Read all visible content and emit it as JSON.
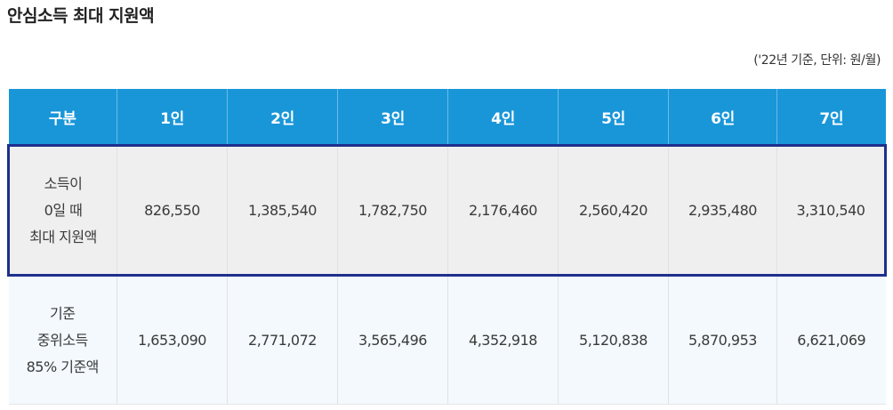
{
  "page": {
    "title": "안심소득 최대 지원액",
    "unit_note": "('22년 기준, 단위: 원/월)"
  },
  "table": {
    "headers": [
      "구분",
      "1인",
      "2인",
      "3인",
      "4인",
      "5인",
      "6인",
      "7인"
    ],
    "rows": [
      {
        "label": "소득이\n0일 때\n최대 지원액",
        "values": [
          "826,550",
          "1,385,540",
          "1,782,750",
          "2,176,460",
          "2,560,420",
          "2,935,480",
          "3,310,540"
        ]
      },
      {
        "label": "기준\n중위소득\n85% 기준액",
        "values": [
          "1,653,090",
          "2,771,072",
          "3,565,496",
          "4,352,918",
          "5,120,838",
          "5,870,953",
          "6,621,069"
        ]
      }
    ]
  },
  "colors": {
    "header_bg": "#1996d8",
    "highlight_border": "#1e2f8c",
    "row1_bg": "#efefef",
    "row2_bg": "#f3f9fd"
  }
}
